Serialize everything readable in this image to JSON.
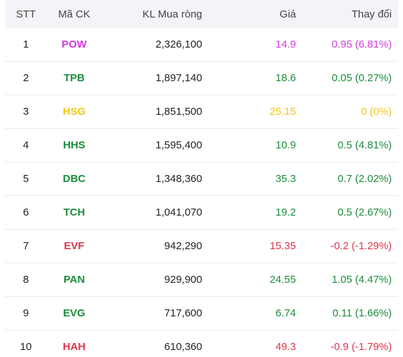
{
  "headers": {
    "stt": "STT",
    "ma_ck": "Mã CK",
    "kl": "KL Mua ròng",
    "gia": "Giá",
    "thay_doi": "Thay đổi"
  },
  "colors": {
    "purple": "#d43be0",
    "green": "#1b8c3c",
    "yellow": "#f5c518",
    "red": "#e0344b"
  },
  "rows": [
    {
      "stt": "1",
      "ma": "POW",
      "kl": "2,326,100",
      "gia": "14.9",
      "thay_doi": "0.95 (6.81%)",
      "color": "purple"
    },
    {
      "stt": "2",
      "ma": "TPB",
      "kl": "1,897,140",
      "gia": "18.6",
      "thay_doi": "0.05 (0.27%)",
      "color": "green"
    },
    {
      "stt": "3",
      "ma": "HSG",
      "kl": "1,851,500",
      "gia": "25.15",
      "thay_doi": "0 (0%)",
      "color": "yellow"
    },
    {
      "stt": "4",
      "ma": "HHS",
      "kl": "1,595,400",
      "gia": "10.9",
      "thay_doi": "0.5 (4.81%)",
      "color": "green"
    },
    {
      "stt": "5",
      "ma": "DBC",
      "kl": "1,348,360",
      "gia": "35.3",
      "thay_doi": "0.7 (2.02%)",
      "color": "green"
    },
    {
      "stt": "6",
      "ma": "TCH",
      "kl": "1,041,070",
      "gia": "19.2",
      "thay_doi": "0.5 (2.67%)",
      "color": "green"
    },
    {
      "stt": "7",
      "ma": "EVF",
      "kl": "942,290",
      "gia": "15.35",
      "thay_doi": "-0.2 (-1.29%)",
      "color": "red"
    },
    {
      "stt": "8",
      "ma": "PAN",
      "kl": "929,900",
      "gia": "24.55",
      "thay_doi": "1.05 (4.47%)",
      "color": "green"
    },
    {
      "stt": "9",
      "ma": "EVG",
      "kl": "717,600",
      "gia": "6.74",
      "thay_doi": "0.11 (1.66%)",
      "color": "green"
    },
    {
      "stt": "10",
      "ma": "HAH",
      "kl": "610,360",
      "gia": "49.3",
      "thay_doi": "-0.9 (-1.79%)",
      "color": "red"
    }
  ]
}
